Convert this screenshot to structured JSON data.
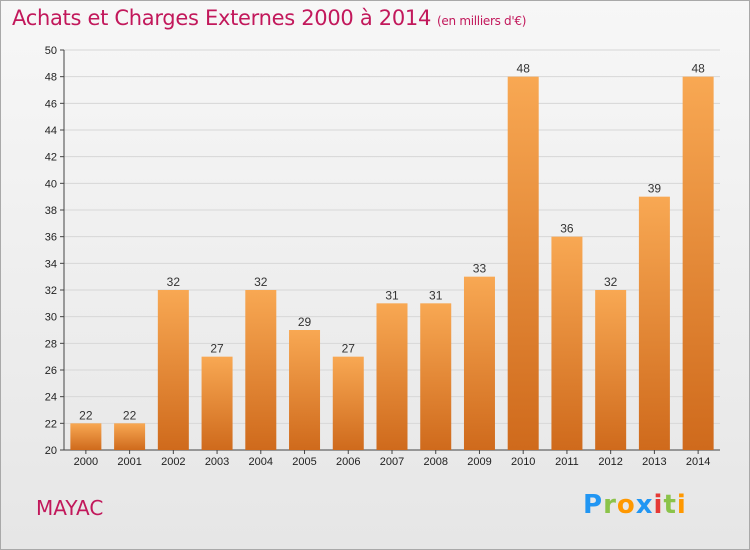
{
  "title": "Achats et Charges Externes 2000 à 2014",
  "subtitle": "(en milliers d'€)",
  "commune": "MAYAC",
  "logo": {
    "letters": [
      "P",
      "r",
      "o",
      "x",
      "i",
      "t",
      "i"
    ],
    "colors": [
      "#2196f3",
      "#8bc34a",
      "#ff9800",
      "#2196f3",
      "#e53935",
      "#8bc34a",
      "#ff9800"
    ]
  },
  "colors": {
    "bar_top": "#f7a453",
    "bar_bottom": "#d2691e",
    "title": "#c2185b",
    "grid": "#d7d7d7"
  },
  "chart_data": {
    "type": "bar",
    "title": "Achats et Charges Externes 2000 à 2014",
    "xlabel": "",
    "ylabel": "",
    "ylim": [
      20,
      50
    ],
    "yticks": [
      20,
      22,
      24,
      26,
      28,
      30,
      32,
      34,
      36,
      38,
      40,
      42,
      44,
      46,
      48,
      50
    ],
    "grid": true,
    "categories": [
      "2000",
      "2001",
      "2002",
      "2003",
      "2004",
      "2005",
      "2006",
      "2007",
      "2008",
      "2009",
      "2010",
      "2011",
      "2012",
      "2013",
      "2014"
    ],
    "values": [
      22,
      22,
      32,
      27,
      32,
      29,
      27,
      31,
      31,
      33,
      48,
      36,
      32,
      39,
      48
    ]
  }
}
